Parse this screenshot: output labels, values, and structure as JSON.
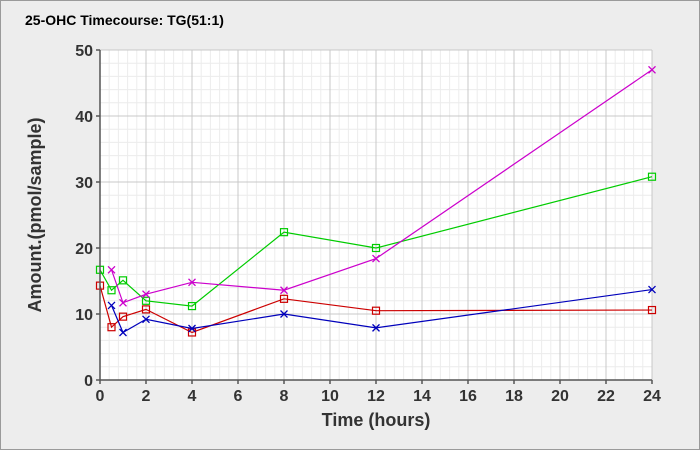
{
  "chart_data": {
    "type": "line",
    "title": "25-OHC Timecourse: TG(51:1)",
    "xlabel": "Time (hours)",
    "ylabel": "Amount.(pmol/sample)",
    "xlim": [
      0,
      24
    ],
    "ylim": [
      0,
      50
    ],
    "xticks": [
      0,
      2,
      4,
      6,
      8,
      10,
      12,
      14,
      16,
      18,
      20,
      22,
      24
    ],
    "yticks": [
      0,
      10,
      20,
      30,
      40,
      50
    ],
    "grid": true,
    "legend": "none",
    "series": [
      {
        "color": "#cc0000",
        "marker": "square",
        "points": [
          [
            0,
            14.3
          ],
          [
            0.5,
            8.0
          ],
          [
            1,
            9.6
          ],
          [
            2,
            10.7
          ],
          [
            4,
            7.2
          ],
          [
            8,
            12.3
          ],
          [
            12,
            10.5
          ],
          [
            24,
            10.6
          ]
        ]
      },
      {
        "color": "#00cc00",
        "marker": "square",
        "points": [
          [
            0,
            16.7
          ],
          [
            0.5,
            13.6
          ],
          [
            1,
            15.1
          ],
          [
            2,
            12.0
          ],
          [
            4,
            11.2
          ],
          [
            8,
            22.4
          ],
          [
            12,
            20.0
          ],
          [
            24,
            30.8
          ]
        ]
      },
      {
        "color": "#0000bb",
        "marker": "cross",
        "points": [
          [
            0.5,
            11.3
          ],
          [
            1,
            7.2
          ],
          [
            2,
            9.2
          ],
          [
            4,
            7.8
          ],
          [
            8,
            10.0
          ],
          [
            12,
            7.9
          ],
          [
            24,
            13.7
          ]
        ]
      },
      {
        "color": "#cc00cc",
        "marker": "cross",
        "points": [
          [
            0.5,
            16.7
          ],
          [
            1,
            11.7
          ],
          [
            2,
            13.0
          ],
          [
            4,
            14.8
          ],
          [
            8,
            13.6
          ],
          [
            12,
            18.4
          ],
          [
            24,
            47.0
          ]
        ]
      }
    ]
  }
}
